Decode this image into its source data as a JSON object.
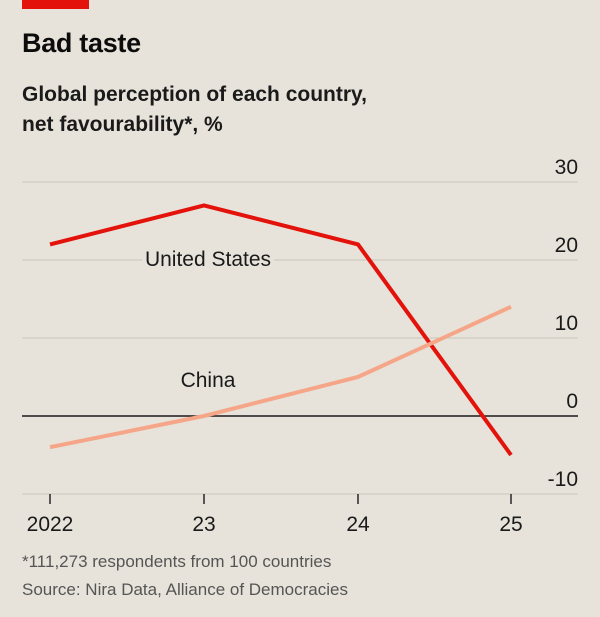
{
  "title": "Bad taste",
  "subtitle": "Global perception of each country, net favourability*, %",
  "footnote": "*111,273 respondents from 100 countries",
  "source": "Source: Nira Data, Alliance of Democracies",
  "colors": {
    "brand_red": "#e3120b",
    "us": "#e3120b",
    "china": "#f6a688",
    "grid": "#c7c4bc",
    "zero": "#1a1a1a"
  },
  "chart_data": {
    "type": "line",
    "x": [
      "2022",
      "23",
      "24",
      "25"
    ],
    "ylim": [
      -10,
      30
    ],
    "y_ticks": [
      -10,
      0,
      10,
      20,
      30
    ],
    "y_tick_labels": [
      "-10",
      "0",
      "10",
      "20",
      "30"
    ],
    "y_axis_position": "right",
    "grid": true,
    "series": [
      {
        "name": "United States",
        "color": "#e3120b",
        "values": [
          22,
          27,
          22,
          -5
        ]
      },
      {
        "name": "China",
        "color": "#f6a688",
        "values": [
          -4,
          0,
          5,
          14
        ]
      }
    ]
  }
}
